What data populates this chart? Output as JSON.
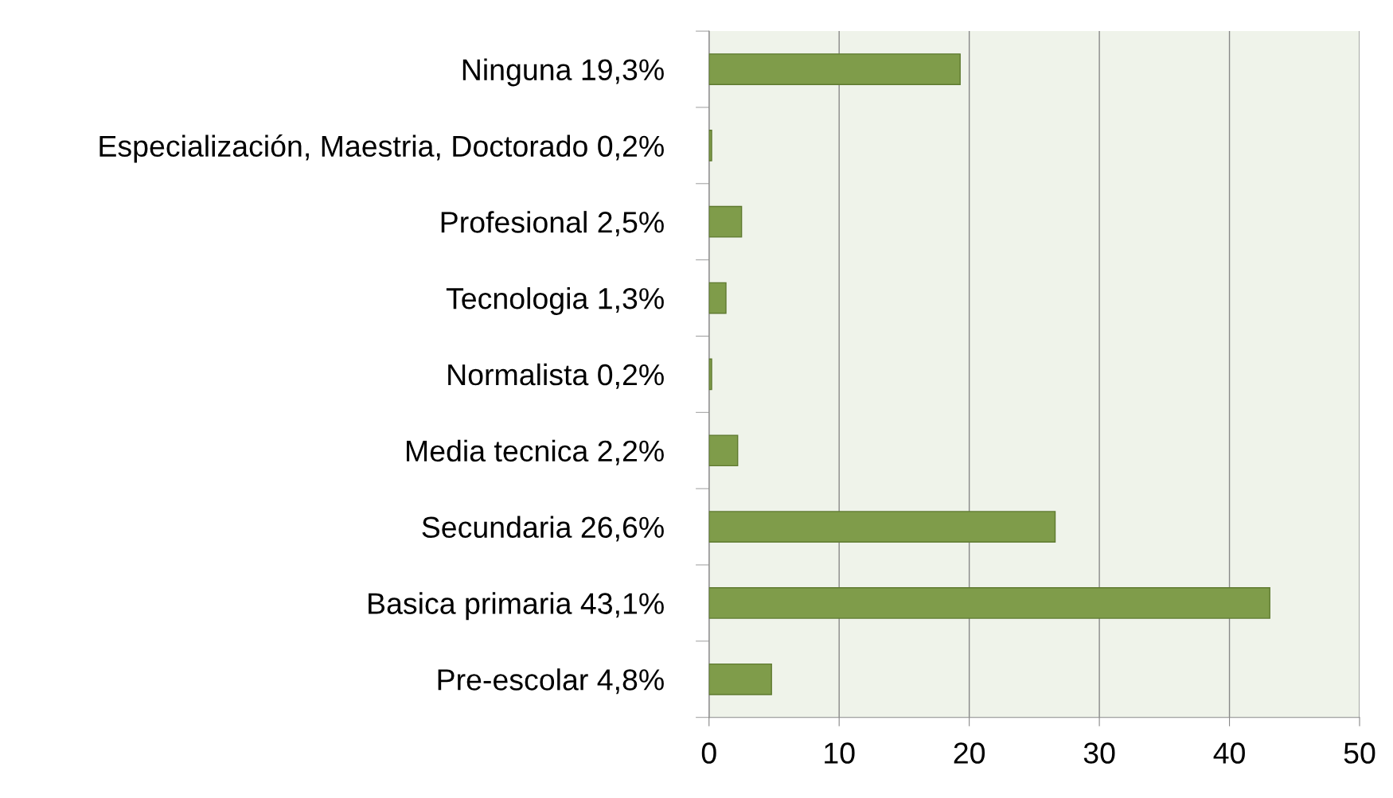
{
  "chart_data": {
    "type": "bar",
    "orientation": "horizontal",
    "categories": [
      "Ninguna 19,3%",
      "Especialización, Maestria, Doctorado 0,2%",
      "Profesional 2,5%",
      "Tecnologia 1,3%",
      "Normalista 0,2%",
      "Media tecnica 2,2%",
      "Secundaria 26,6%",
      "Basica primaria 43,1%",
      "Pre-escolar 4,8%"
    ],
    "values": [
      19.3,
      0.2,
      2.5,
      1.3,
      0.2,
      2.2,
      26.6,
      43.1,
      4.8
    ],
    "color": "#7f9c4a",
    "xlim": [
      0,
      50
    ],
    "xticks": [
      0,
      10,
      20,
      30,
      40,
      50
    ],
    "grid": "x",
    "legend": false
  }
}
